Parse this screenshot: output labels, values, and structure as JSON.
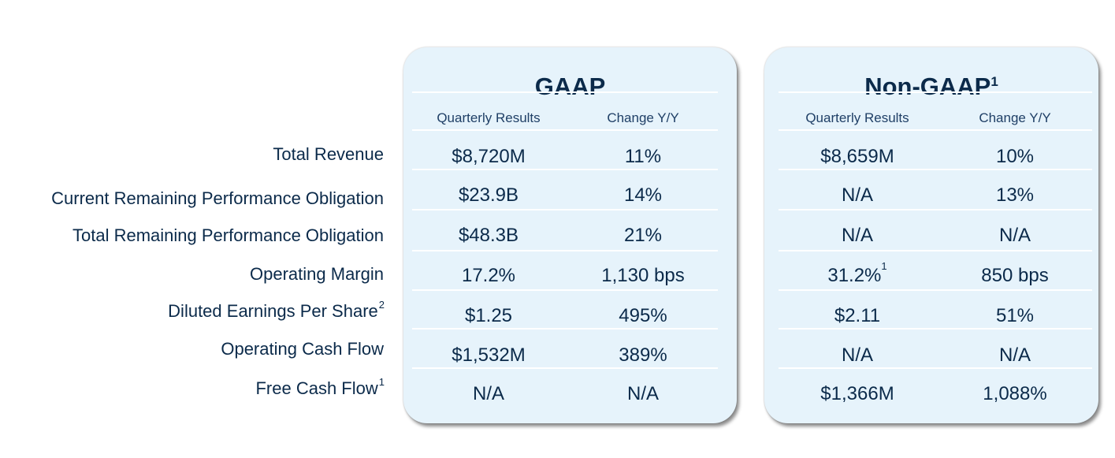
{
  "row_labels": [
    {
      "text": "Total Revenue",
      "sup": ""
    },
    {
      "text": "Current Remaining Performance Obligation",
      "sup": ""
    },
    {
      "text": "Total Remaining Performance Obligation",
      "sup": ""
    },
    {
      "text": "Operating Margin",
      "sup": ""
    },
    {
      "text": "Diluted Earnings Per Share",
      "sup": "2"
    },
    {
      "text": "Operating Cash Flow",
      "sup": ""
    },
    {
      "text": "Free Cash Flow",
      "sup": "1"
    }
  ],
  "gaap": {
    "title": "GAAP",
    "title_sup": "",
    "col_headers": [
      "Quarterly Results",
      "Change Y/Y"
    ],
    "rows": [
      {
        "result": "$8,720M",
        "result_sup": "",
        "change": "11%"
      },
      {
        "result": "$23.9B",
        "result_sup": "",
        "change": "14%"
      },
      {
        "result": "$48.3B",
        "result_sup": "",
        "change": "21%"
      },
      {
        "result": "17.2%",
        "result_sup": "",
        "change": "1,130 bps"
      },
      {
        "result": "$1.25",
        "result_sup": "",
        "change": "495%"
      },
      {
        "result": "$1,532M",
        "result_sup": "",
        "change": "389%"
      },
      {
        "result": "N/A",
        "result_sup": "",
        "change": "N/A"
      }
    ]
  },
  "non_gaap": {
    "title": "Non-GAAP",
    "title_sup": "1",
    "col_headers": [
      "Quarterly Results",
      "Change Y/Y"
    ],
    "rows": [
      {
        "result": "$8,659M",
        "result_sup": "",
        "change": "10%"
      },
      {
        "result": "N/A",
        "result_sup": "",
        "change": "13%"
      },
      {
        "result": "N/A",
        "result_sup": "",
        "change": "N/A"
      },
      {
        "result": "31.2%",
        "result_sup": "1",
        "change": "850 bps"
      },
      {
        "result": "$2.11",
        "result_sup": "",
        "change": "51%"
      },
      {
        "result": "N/A",
        "result_sup": "",
        "change": "N/A"
      },
      {
        "result": "$1,366M",
        "result_sup": "",
        "change": "1,088%"
      }
    ]
  }
}
